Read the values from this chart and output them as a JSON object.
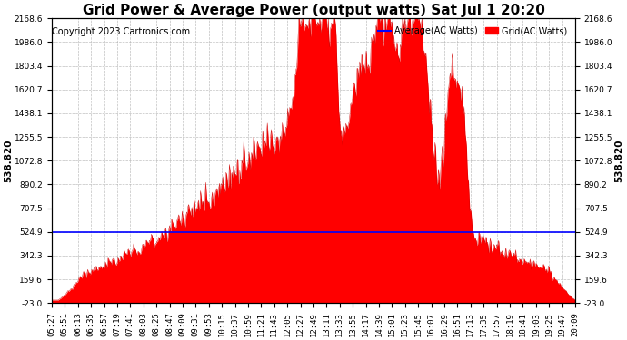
{
  "title": "Grid Power & Average Power (output watts) Sat Jul 1 20:20",
  "copyright": "Copyright 2023 Cartronics.com",
  "y_left_label": "538.820",
  "y_right_label": "538.820",
  "average_value": 524.9,
  "y_min": -23.0,
  "y_max": 2168.6,
  "yticks": [
    2168.6,
    1986.0,
    1803.4,
    1620.7,
    1438.1,
    1255.5,
    1072.8,
    890.2,
    707.5,
    524.9,
    342.3,
    159.6,
    -23.0
  ],
  "legend_avg_label": "Average(AC Watts)",
  "legend_grid_label": "Grid(AC Watts)",
  "avg_color": "#0000ff",
  "grid_fill_color": "#ff0000",
  "grid_line_color": "#cc0000",
  "background_color": "#ffffff",
  "plot_bg_color": "#ffffff",
  "grid_color": "#b0b0b0",
  "title_fontsize": 11,
  "copyright_fontsize": 7,
  "tick_fontsize": 6.5,
  "xtick_labels": [
    "05:27",
    "05:51",
    "06:13",
    "06:35",
    "06:57",
    "07:19",
    "07:41",
    "08:03",
    "08:25",
    "08:47",
    "09:09",
    "09:31",
    "09:53",
    "10:15",
    "10:37",
    "10:59",
    "11:21",
    "11:43",
    "12:05",
    "12:27",
    "12:49",
    "13:11",
    "13:33",
    "13:55",
    "14:17",
    "14:39",
    "15:01",
    "15:23",
    "15:45",
    "16:07",
    "16:29",
    "16:51",
    "17:13",
    "17:35",
    "17:57",
    "18:19",
    "18:41",
    "19:03",
    "19:25",
    "19:47",
    "20:09"
  ],
  "n_xticks": 41
}
